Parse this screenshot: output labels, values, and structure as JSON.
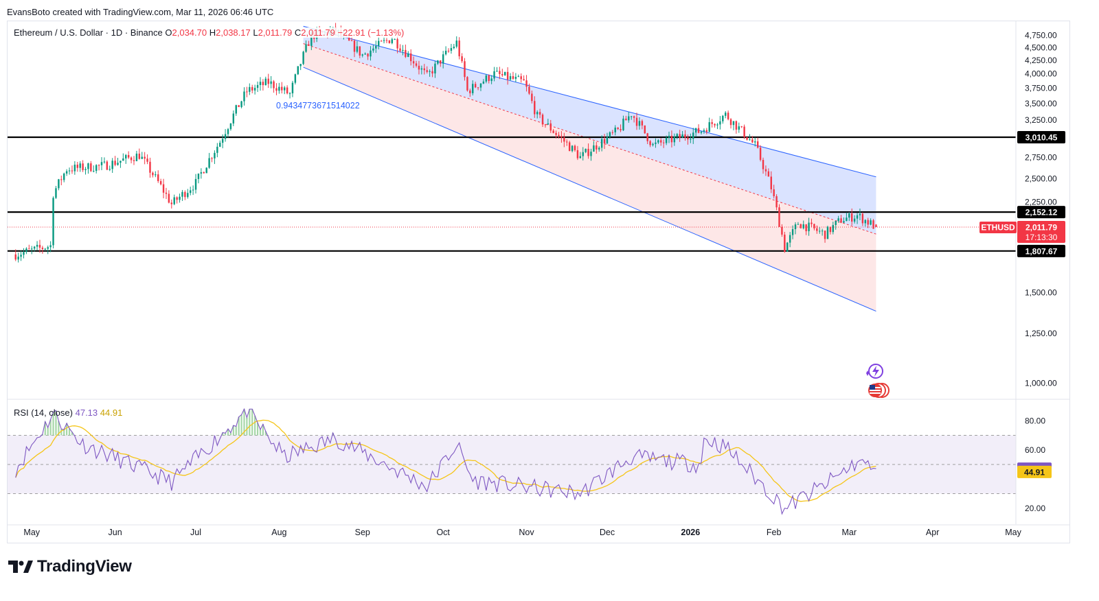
{
  "header": {
    "credit": "EvansBoto created with TradingView.com, Mar 11, 2026 06:46 UTC"
  },
  "legend": {
    "symbol": "Ethereum / U.S. Dollar · 1D · Binance",
    "o_label": "O",
    "o_value": "2,034.70",
    "h_label": "H",
    "h_value": "2,038.17",
    "l_label": "L",
    "l_value": "2,011.79",
    "c_label": "C",
    "c_value": "2,011.79",
    "change": "−22.91 (−1.13%)"
  },
  "rsi_legend": {
    "label": "RSI (14, close)",
    "rsi_value": "47.13",
    "ma_value": "44.91"
  },
  "channel_label": "0.9434773671514022",
  "price_tag": {
    "symbol": "ETHUSD",
    "price": "2,011.79",
    "countdown": "17:13:30"
  },
  "logo": {
    "text": "TradingView"
  },
  "icons": [
    "lightning-idea-icon",
    "us-flag-economic-event-icon",
    "tradingview-logo-icon"
  ],
  "colors": {
    "up": "#089981",
    "down": "#f23645",
    "channel_upper_fill": "#d6e0ff",
    "channel_lower_fill": "#fde4e4",
    "channel_line": "#2962ff",
    "rsi_line": "#7e57c2",
    "rsi_ma": "#f5c518",
    "level_line": "#000000"
  },
  "chart_data": {
    "type": "candlestick",
    "symbol": "ETHUSD",
    "timeframe": "1D",
    "x_ticks": [
      "May",
      "Jun",
      "Jul",
      "Aug",
      "Sep",
      "Oct",
      "Nov",
      "Dec",
      "2026",
      "Feb",
      "Mar",
      "Apr",
      "May"
    ],
    "y_ticks": [
      "4,750.00",
      "4,500.00",
      "4,250.00",
      "4,000.00",
      "3,750.00",
      "3,500.00",
      "3,250.00",
      "2,750.00",
      "2,500.00",
      "2,250.00",
      "1,500.00",
      "1,250.00",
      "1,000.00"
    ],
    "ylim": [
      950,
      5000
    ],
    "horizontal_levels": [
      {
        "value": 3010.45,
        "label": "3,010.45"
      },
      {
        "value": 2152.12,
        "label": "2,152.12"
      },
      {
        "value": 1807.67,
        "label": "1,807.67"
      }
    ],
    "regression_channel": {
      "start": "2025-08-10",
      "end": "2026-03-11",
      "upper": [
        4950,
        2520
      ],
      "middle": [
        4580,
        1950
      ],
      "lower": [
        4120,
        1380
      ],
      "label": "0.9434773671514022"
    },
    "approx_daily_closes_keypoints": [
      {
        "date": "2025-04-25",
        "close": 1780
      },
      {
        "date": "2025-05-08",
        "close": 1850
      },
      {
        "date": "2025-05-09",
        "close": 2340
      },
      {
        "date": "2025-05-14",
        "close": 2610
      },
      {
        "date": "2025-05-28",
        "close": 2650
      },
      {
        "date": "2025-06-10",
        "close": 2780
      },
      {
        "date": "2025-06-22",
        "close": 2230
      },
      {
        "date": "2025-07-01",
        "close": 2450
      },
      {
        "date": "2025-07-10",
        "close": 2950
      },
      {
        "date": "2025-07-20",
        "close": 3700
      },
      {
        "date": "2025-07-28",
        "close": 3850
      },
      {
        "date": "2025-08-05",
        "close": 3650
      },
      {
        "date": "2025-08-13",
        "close": 4750
      },
      {
        "date": "2025-08-22",
        "close": 4850
      },
      {
        "date": "2025-09-01",
        "close": 4350
      },
      {
        "date": "2025-09-12",
        "close": 4700
      },
      {
        "date": "2025-09-25",
        "close": 3950
      },
      {
        "date": "2025-10-06",
        "close": 4600
      },
      {
        "date": "2025-10-10",
        "close": 3700
      },
      {
        "date": "2025-10-20",
        "close": 4000
      },
      {
        "date": "2025-10-31",
        "close": 3850
      },
      {
        "date": "2025-11-05",
        "close": 3300
      },
      {
        "date": "2025-11-21",
        "close": 2750
      },
      {
        "date": "2025-12-05",
        "close": 3100
      },
      {
        "date": "2025-12-10",
        "close": 3350
      },
      {
        "date": "2025-12-18",
        "close": 2900
      },
      {
        "date": "2026-01-05",
        "close": 3100
      },
      {
        "date": "2026-01-14",
        "close": 3330
      },
      {
        "date": "2026-01-25",
        "close": 2900
      },
      {
        "date": "2026-01-31",
        "close": 2400
      },
      {
        "date": "2026-02-05",
        "close": 1830
      },
      {
        "date": "2026-02-10",
        "close": 2050
      },
      {
        "date": "2026-02-20",
        "close": 1950
      },
      {
        "date": "2026-02-26",
        "close": 2080
      },
      {
        "date": "2026-03-04",
        "close": 2120
      },
      {
        "date": "2026-03-11",
        "close": 2011.79
      }
    ],
    "last": {
      "open": 2034.7,
      "high": 2038.17,
      "low": 2011.79,
      "close": 2011.79,
      "change": -22.91,
      "change_pct": -1.13
    },
    "rsi": {
      "period": 14,
      "ylim": [
        10,
        90
      ],
      "y_ticks": [
        "80.00",
        "60.00",
        "20.00"
      ],
      "bands": [
        70,
        50,
        30
      ],
      "current": 47.13,
      "ma_current": 44.91,
      "approx_keypoints": [
        {
          "date": "2025-04-25",
          "rsi": 47
        },
        {
          "date": "2025-05-09",
          "rsi": 85
        },
        {
          "date": "2025-05-20",
          "rsi": 64
        },
        {
          "date": "2025-06-22",
          "rsi": 38
        },
        {
          "date": "2025-07-20",
          "rsi": 87
        },
        {
          "date": "2025-08-03",
          "rsi": 55
        },
        {
          "date": "2025-08-22",
          "rsi": 68
        },
        {
          "date": "2025-09-25",
          "rsi": 35
        },
        {
          "date": "2025-10-06",
          "rsi": 64
        },
        {
          "date": "2025-10-12",
          "rsi": 39
        },
        {
          "date": "2025-11-21",
          "rsi": 30
        },
        {
          "date": "2025-12-10",
          "rsi": 55
        },
        {
          "date": "2026-01-05",
          "rsi": 50
        },
        {
          "date": "2026-01-06",
          "rsi": 68
        },
        {
          "date": "2026-01-14",
          "rsi": 62
        },
        {
          "date": "2026-02-05",
          "rsi": 20
        },
        {
          "date": "2026-02-20",
          "rsi": 36
        },
        {
          "date": "2026-03-04",
          "rsi": 52
        },
        {
          "date": "2026-03-11",
          "rsi": 47.13
        }
      ]
    }
  }
}
